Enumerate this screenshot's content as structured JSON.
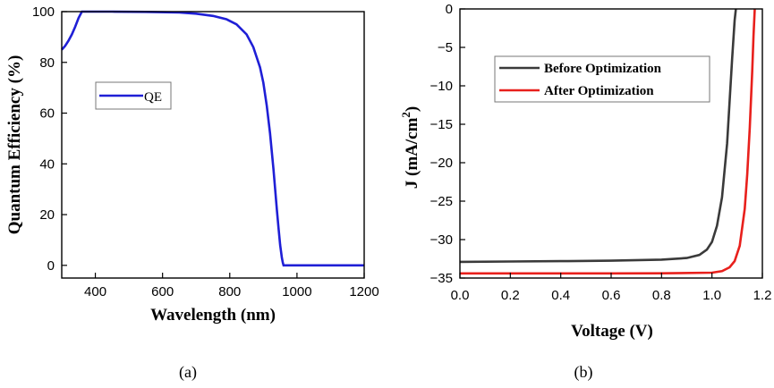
{
  "chart_data": [
    {
      "type": "line",
      "panel_label": "(a)",
      "xlabel": "Wavelength (nm)",
      "ylabel": "Quantum Efficiency (%)",
      "xlim": [
        300,
        1200
      ],
      "ylim": [
        -5,
        100
      ],
      "xticks": [
        400,
        600,
        800,
        1000,
        1200
      ],
      "yticks": [
        0,
        20,
        40,
        60,
        80,
        100
      ],
      "series": [
        {
          "name": "QE",
          "color": "#1f1fd6",
          "x": [
            300,
            310,
            320,
            330,
            340,
            350,
            360,
            380,
            450,
            550,
            650,
            700,
            750,
            790,
            820,
            850,
            870,
            890,
            900,
            910,
            920,
            930,
            935,
            940,
            945,
            950,
            955,
            958,
            960,
            1000,
            1100,
            1200
          ],
          "y": [
            85,
            86.5,
            88.5,
            91,
            94,
            97.5,
            100,
            100,
            100,
            99.9,
            99.7,
            99.2,
            98.3,
            97,
            95,
            91,
            86,
            78,
            72,
            63,
            52,
            38,
            30,
            22,
            15,
            8,
            3,
            1,
            0,
            0,
            0,
            0
          ]
        }
      ]
    },
    {
      "type": "line",
      "panel_label": "(b)",
      "xlabel": "Voltage (V)",
      "ylabel_main": "J (mA/cm",
      "ylabel_sup": "2",
      "ylabel_close": ")",
      "xlim": [
        0.0,
        1.2
      ],
      "ylim": [
        -35,
        0
      ],
      "xticks": [
        "0.0",
        "0.2",
        "0.4",
        "0.6",
        "0.8",
        "1.0",
        "1.2"
      ],
      "yticks": [
        0,
        -5,
        -10,
        -15,
        -20,
        -25,
        -30,
        -35
      ],
      "series": [
        {
          "name": "Before Optimization",
          "color": "#3a3a3a",
          "x": [
            0.0,
            0.2,
            0.4,
            0.6,
            0.8,
            0.9,
            0.95,
            0.98,
            1.0,
            1.02,
            1.04,
            1.06,
            1.07,
            1.08,
            1.09,
            1.095
          ],
          "y": [
            -32.9,
            -32.85,
            -32.8,
            -32.75,
            -32.6,
            -32.4,
            -32.0,
            -31.3,
            -30.3,
            -28.2,
            -24.5,
            -17.5,
            -12.0,
            -6.5,
            -1.5,
            0.0
          ]
        },
        {
          "name": "After Optimization",
          "color": "#e8201c",
          "x": [
            0.0,
            0.2,
            0.4,
            0.6,
            0.8,
            1.0,
            1.04,
            1.07,
            1.09,
            1.11,
            1.13,
            1.14,
            1.15,
            1.16,
            1.165,
            1.17
          ],
          "y": [
            -34.4,
            -34.4,
            -34.4,
            -34.4,
            -34.38,
            -34.3,
            -34.1,
            -33.6,
            -32.8,
            -30.8,
            -26.0,
            -21.5,
            -15.5,
            -8.0,
            -3.5,
            0.0
          ]
        }
      ]
    }
  ]
}
